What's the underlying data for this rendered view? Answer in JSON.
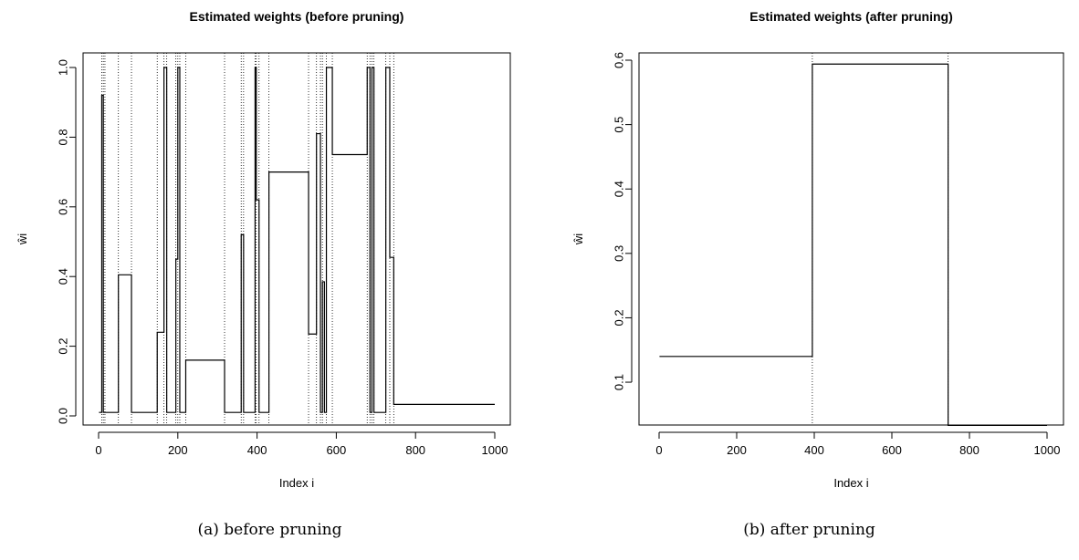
{
  "chart_data": [
    {
      "type": "step",
      "title": "Estimated weights (before pruning)",
      "xlabel": "Index  i",
      "ylabel": "ŵi",
      "caption": "(a)  before pruning",
      "xlim": [
        0,
        1000
      ],
      "ylim": [
        0,
        1.0
      ],
      "x_ticks": [
        "0",
        "200",
        "400",
        "600",
        "800",
        "1000"
      ],
      "y_ticks": [
        "0.0",
        "0.2",
        "0.4",
        "0.6",
        "0.8",
        "1.0"
      ],
      "x": [
        1,
        8,
        12,
        16,
        50,
        83,
        148,
        165,
        172,
        175,
        195,
        200,
        205,
        220,
        318,
        360,
        366,
        370,
        395,
        398,
        405,
        408,
        430,
        530,
        550,
        560,
        565,
        570,
        575,
        590,
        678,
        685,
        690,
        695,
        700,
        725,
        735,
        740,
        745,
        1000
      ],
      "y": [
        0.01,
        0.92,
        0.01,
        0.01,
        0.405,
        0.01,
        0.24,
        1.0,
        0.01,
        0.01,
        0.45,
        1.0,
        0.01,
        0.16,
        0.01,
        0.52,
        0.01,
        0.01,
        1.0,
        0.62,
        0.01,
        0.01,
        0.7,
        0.235,
        0.81,
        0.01,
        0.385,
        0.01,
        1.0,
        0.75,
        1.0,
        0.01,
        1.0,
        0.01,
        0.01,
        1.0,
        0.455,
        0.455,
        0.033,
        0.033
      ],
      "changepoints": [
        8,
        12,
        16,
        50,
        83,
        148,
        165,
        172,
        195,
        200,
        205,
        220,
        318,
        360,
        366,
        395,
        398,
        405,
        430,
        530,
        550,
        560,
        565,
        575,
        590,
        678,
        685,
        690,
        695,
        725,
        735,
        745
      ]
    },
    {
      "type": "step",
      "title": "Estimated weights (after pruning)",
      "xlabel": "Index  i",
      "ylabel": "ŵi",
      "caption": "(b)  after pruning",
      "xlim": [
        0,
        1000
      ],
      "ylim": [
        0.0335,
        0.6
      ],
      "x_ticks": [
        "0",
        "200",
        "400",
        "600",
        "800",
        "1000"
      ],
      "y_ticks": [
        "0.1",
        "0.2",
        "0.3",
        "0.4",
        "0.5",
        "0.6"
      ],
      "x": [
        1,
        395,
        745,
        1000
      ],
      "y": [
        0.14,
        0.594,
        0.033,
        0.033
      ],
      "changepoints": [
        395,
        745
      ]
    }
  ]
}
